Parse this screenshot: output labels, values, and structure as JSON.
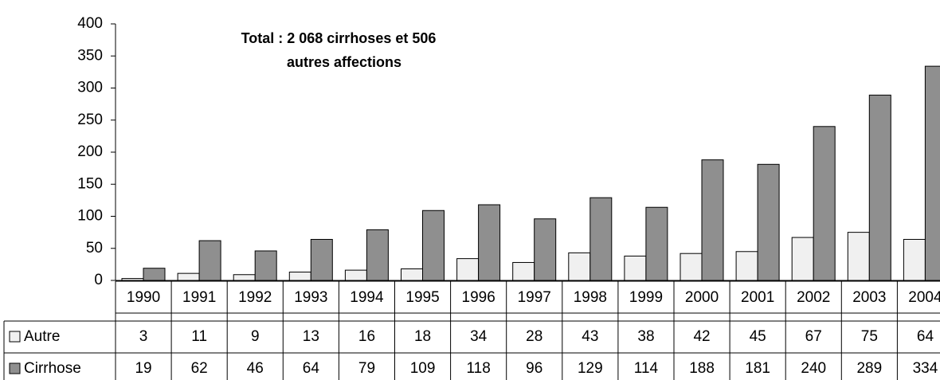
{
  "chart_data": {
    "type": "bar",
    "annotation": [
      "Total : 2 068 cirrhoses et 506",
      "autres affections"
    ],
    "categories": [
      "1990",
      "1991",
      "1992",
      "1993",
      "1994",
      "1995",
      "1996",
      "1997",
      "1998",
      "1999",
      "2000",
      "2001",
      "2002",
      "2003",
      "2004"
    ],
    "series": [
      {
        "name": "Autre",
        "color": "#f0f0f0",
        "values": [
          3,
          11,
          9,
          13,
          16,
          18,
          34,
          28,
          43,
          38,
          42,
          45,
          67,
          75,
          64
        ]
      },
      {
        "name": "Cirrhose",
        "color": "#8f8f8f",
        "values": [
          19,
          62,
          46,
          64,
          79,
          109,
          118,
          96,
          129,
          114,
          188,
          181,
          240,
          289,
          334
        ]
      }
    ],
    "ylim": [
      0,
      400
    ],
    "yticks": [
      0,
      50,
      100,
      150,
      200,
      250,
      300,
      350,
      400
    ],
    "grid": false
  }
}
